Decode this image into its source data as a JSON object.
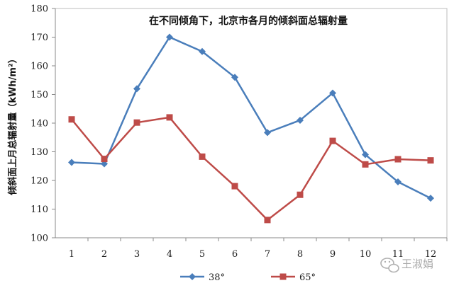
{
  "chart_data": {
    "type": "line",
    "title": "在不同倾角下，北京市各月的倾斜面总辐射量",
    "ylabel": "倾斜面上月总辐射量（kWh/m²）",
    "xlabel": "",
    "categories": [
      "1",
      "2",
      "3",
      "4",
      "5",
      "6",
      "7",
      "8",
      "9",
      "10",
      "11",
      "12"
    ],
    "ylim": [
      100,
      180
    ],
    "yticks": [
      100,
      110,
      120,
      130,
      140,
      150,
      160,
      170,
      180
    ],
    "grid": false,
    "legend_position": "bottom",
    "series": [
      {
        "name": "38°",
        "marker": "diamond",
        "color": "#4a7ebb",
        "values": [
          126.3,
          125.8,
          152,
          170,
          165,
          156,
          136.7,
          141,
          150.5,
          129,
          119.5,
          113.8
        ]
      },
      {
        "name": "65°",
        "marker": "square",
        "color": "#be4b48",
        "values": [
          141.3,
          127.5,
          140.2,
          142,
          128.3,
          118,
          106.2,
          115,
          133.8,
          125.6,
          127.4,
          127
        ]
      }
    ]
  },
  "watermark": {
    "text": "王淑娟"
  }
}
